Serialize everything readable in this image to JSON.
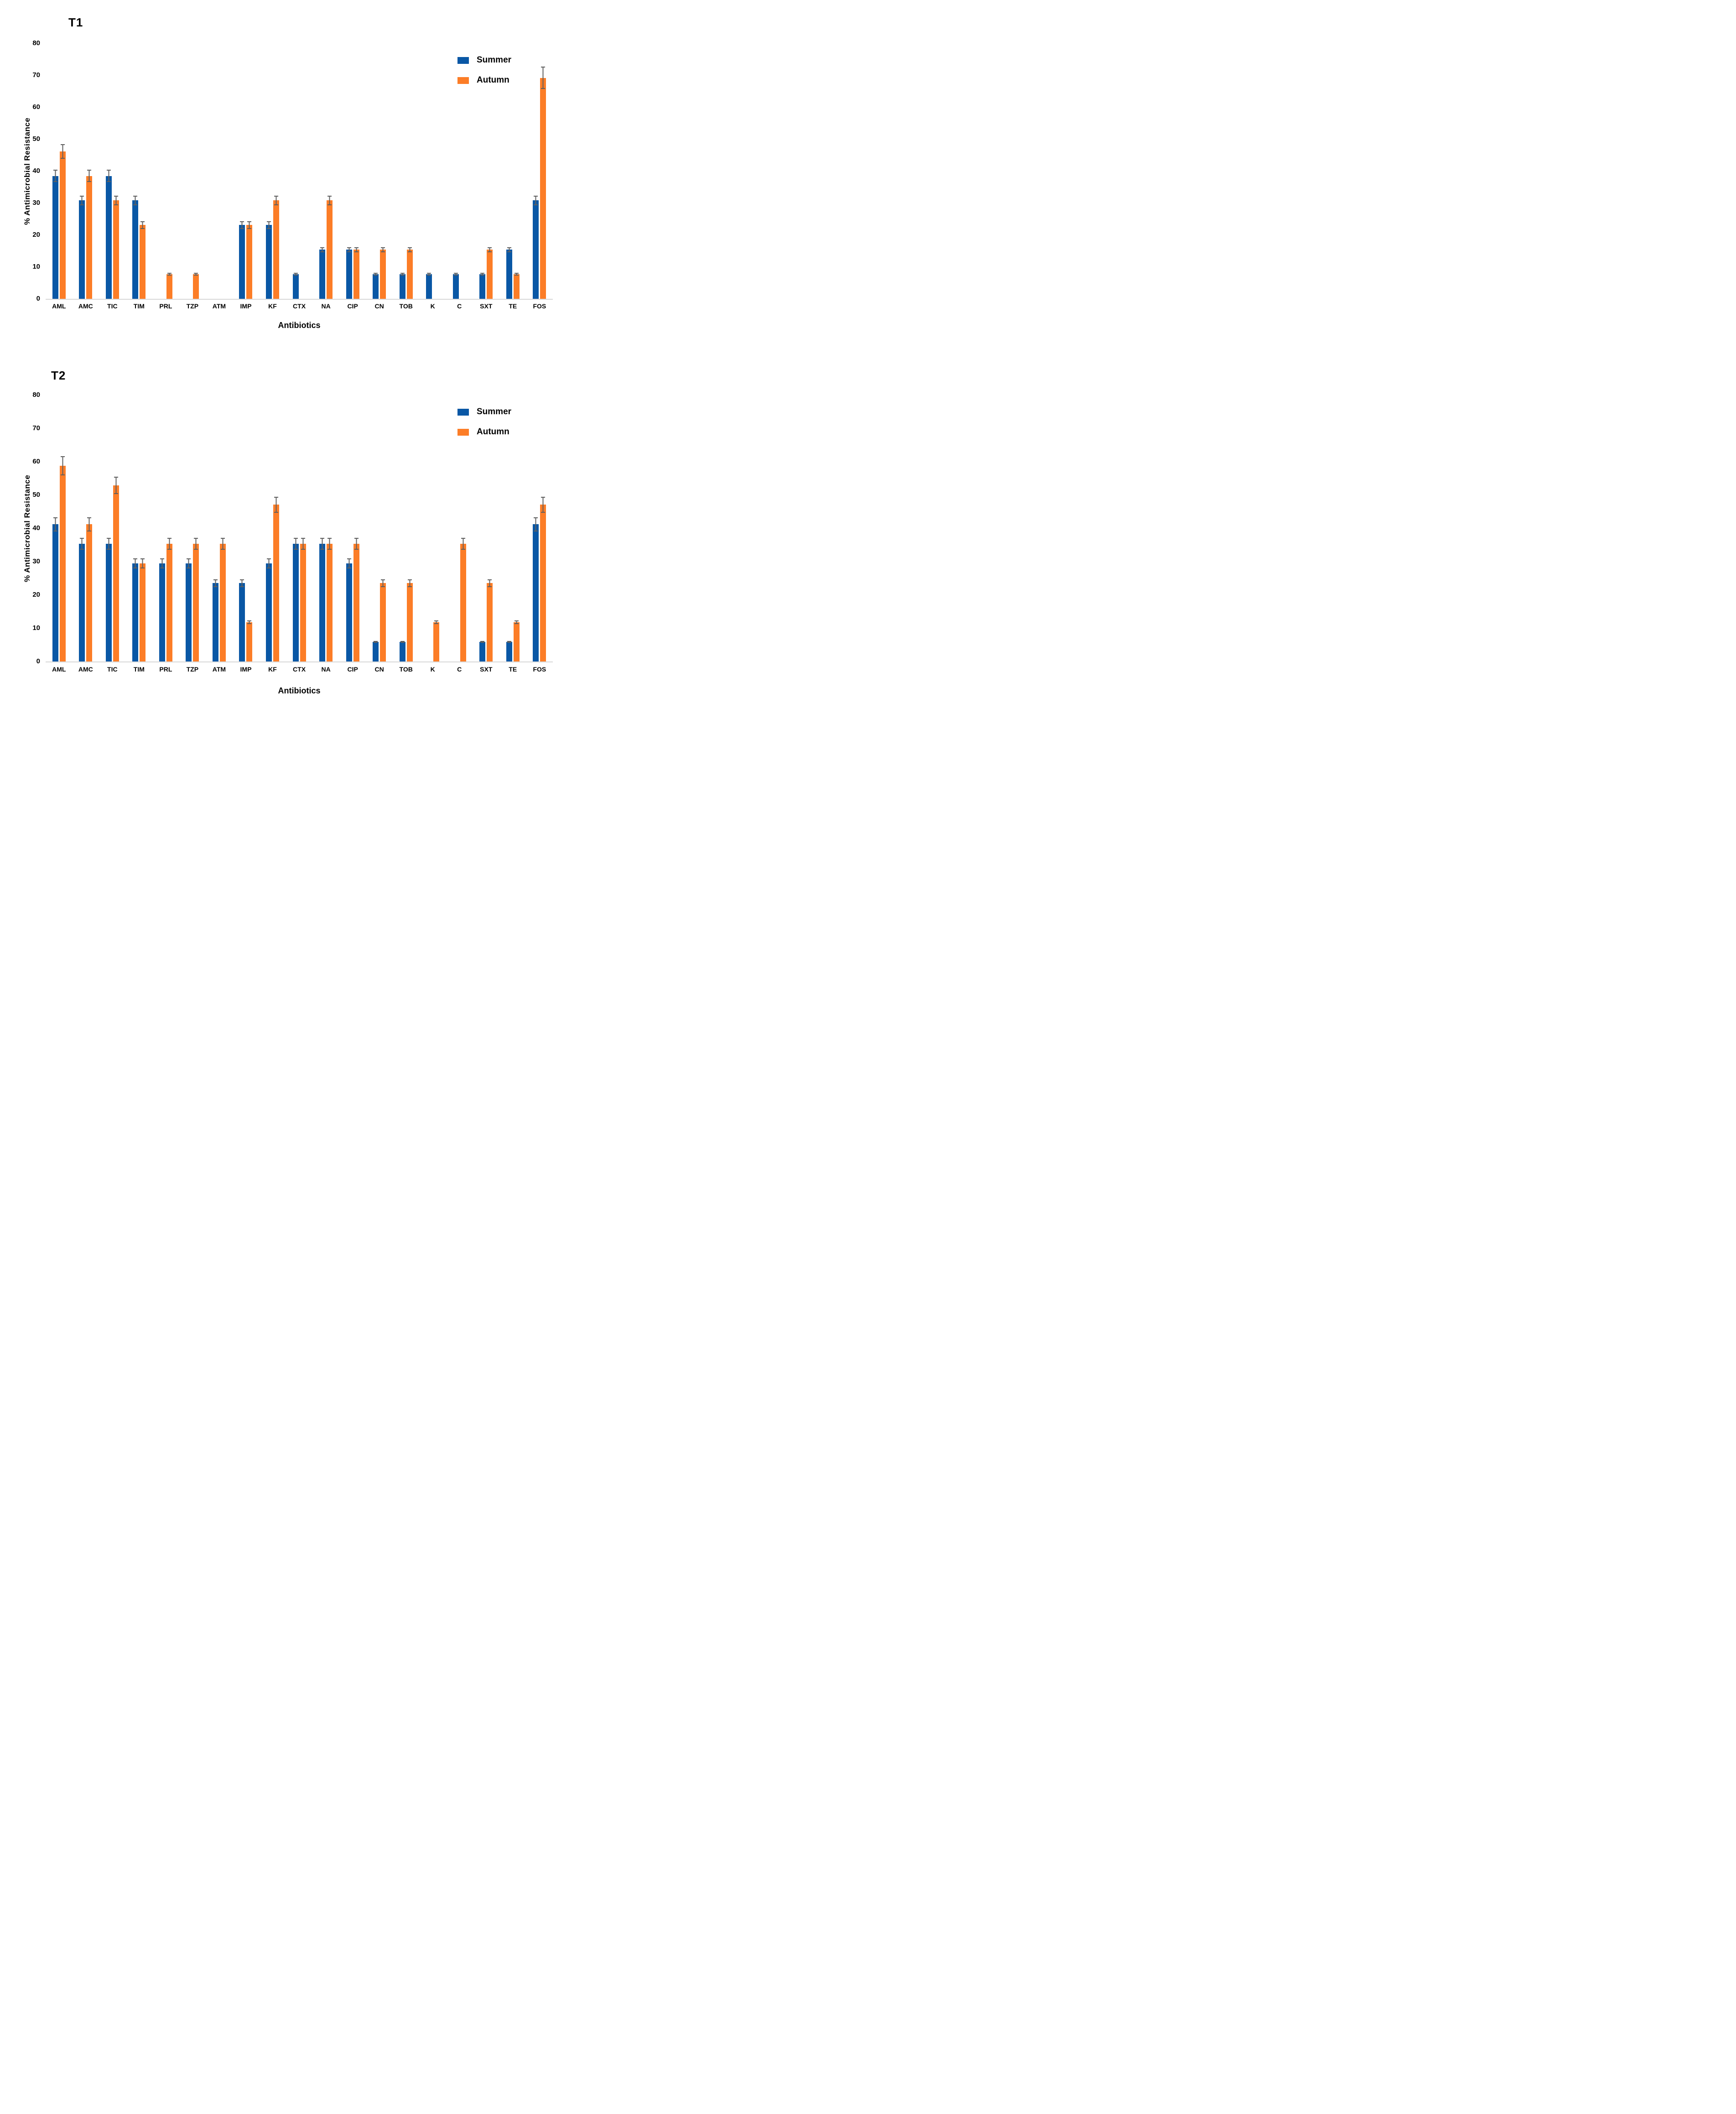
{
  "figure": {
    "background": "#FFFFFF"
  },
  "colors": {
    "summer": "#0957A5",
    "autumn": "#FC7D27",
    "error_bar": "#5F5F5F",
    "axis_line": "#D8D8D8",
    "text": "#000000"
  },
  "legend": {
    "position": "top-right-inside",
    "items": [
      {
        "label": "Summer",
        "color_key": "summer"
      },
      {
        "label": "Autumn",
        "color_key": "autumn"
      }
    ]
  },
  "y_axis": {
    "title": "% Antimicrobial Resistance",
    "ticks": [
      0,
      10,
      20,
      30,
      40,
      50,
      60,
      70,
      80
    ],
    "max": 80,
    "gridlines": false
  },
  "x_axis": {
    "title": "Antibiotics"
  },
  "chart_data": [
    {
      "type": "bar",
      "title": "T1",
      "xlabel": "Antibiotics",
      "ylabel": "% Antimicrobial Resistance",
      "ylim": [
        0,
        80
      ],
      "legend_position": "top-right-inside",
      "categories": [
        "AML",
        "AMC",
        "TIC",
        "TIM",
        "PRL",
        "TZP",
        "ATM",
        "IMP",
        "KF",
        "CTX",
        "NA",
        "CIP",
        "CN",
        "TOB",
        "K",
        "C",
        "SXT",
        "TE",
        "FOS"
      ],
      "series": [
        {
          "name": "Summer",
          "values": [
            38.5,
            30.8,
            38.5,
            30.8,
            0,
            0,
            0,
            23.1,
            23.1,
            7.7,
            15.4,
            15.4,
            7.7,
            7.7,
            7.7,
            7.7,
            7.7,
            15.4,
            30.8
          ],
          "errors": [
            1.9,
            1.5,
            1.9,
            1.5,
            0,
            0,
            0,
            1.2,
            1.2,
            0.4,
            0.8,
            0.8,
            0.4,
            0.4,
            0.4,
            0.4,
            0.4,
            0.8,
            1.5
          ]
        },
        {
          "name": "Autumn",
          "values": [
            46.2,
            38.5,
            30.8,
            23.1,
            7.7,
            7.7,
            0,
            23.1,
            30.8,
            0,
            30.8,
            15.4,
            15.4,
            15.4,
            0,
            0,
            15.4,
            7.7,
            69.2
          ],
          "errors": [
            2.3,
            1.9,
            1.5,
            1.2,
            0.4,
            0.4,
            0,
            1.2,
            1.5,
            0,
            1.5,
            0.8,
            0.8,
            0.8,
            0,
            0,
            0.8,
            0.4,
            3.5
          ]
        }
      ]
    },
    {
      "type": "bar",
      "title": "T2",
      "xlabel": "Antibiotics",
      "ylabel": "% Antimicrobial Resistance",
      "ylim": [
        0,
        80
      ],
      "legend_position": "top-right-inside",
      "categories": [
        "AML",
        "AMC",
        "TIC",
        "TIM",
        "PRL",
        "TZP",
        "ATM",
        "IMP",
        "KF",
        "CTX",
        "NA",
        "CIP",
        "CN",
        "TOB",
        "K",
        "C",
        "SXT",
        "TE",
        "FOS"
      ],
      "series": [
        {
          "name": "Summer",
          "values": [
            41.2,
            35.3,
            35.3,
            29.4,
            29.4,
            29.4,
            23.5,
            23.5,
            29.4,
            35.3,
            35.3,
            29.4,
            5.9,
            5.9,
            0,
            0,
            5.9,
            5.9,
            41.2
          ],
          "errors": [
            2.1,
            1.8,
            1.8,
            1.5,
            1.5,
            1.5,
            1.2,
            1.2,
            1.5,
            1.8,
            1.8,
            1.5,
            0.3,
            0.3,
            0,
            0,
            0.3,
            0.3,
            2.1
          ]
        },
        {
          "name": "Autumn",
          "values": [
            58.8,
            41.2,
            52.9,
            29.4,
            35.3,
            35.3,
            35.3,
            11.8,
            47.1,
            35.3,
            35.3,
            35.3,
            23.5,
            23.5,
            11.8,
            35.3,
            23.5,
            11.8,
            47.1
          ],
          "errors": [
            2.9,
            2.1,
            2.6,
            1.5,
            1.8,
            1.8,
            1.8,
            0.6,
            2.4,
            1.8,
            1.8,
            1.8,
            1.2,
            1.2,
            0.6,
            1.8,
            1.2,
            0.6,
            2.4
          ]
        }
      ]
    }
  ]
}
